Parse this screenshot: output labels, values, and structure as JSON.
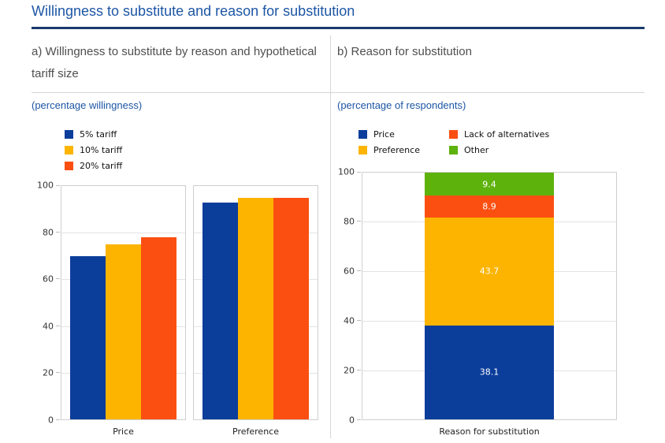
{
  "page": {
    "title": "Willingness to substitute and reason for substitution"
  },
  "panels": {
    "a": {
      "header": "a) Willingness to substitute by reason and hypothetical tariff size",
      "subtitle": "(percentage willingness)"
    },
    "b": {
      "header": "b) Reason for substitution",
      "subtitle": "(percentage of respondents)"
    }
  },
  "colors": {
    "title_blue": "#1d56a5",
    "rule_navy": "#193a6d",
    "header_gray": "#4f4f4f",
    "divider_gray": "#d6d6d6",
    "bar_blue": "#0b3d9b",
    "bar_yellow": "#fcb400",
    "bar_orange": "#fb4f12",
    "bar_green": "#5eb20c"
  },
  "chart_data": [
    {
      "id": "willingness-by-tariff",
      "type": "bar",
      "title": "a) Willingness to substitute by reason and hypothetical tariff size",
      "subtitle": "(percentage willingness)",
      "categories": [
        "Price",
        "Preference"
      ],
      "series": [
        {
          "name": "5% tariff",
          "color": "#0b3d9b",
          "values": [
            70,
            93
          ]
        },
        {
          "name": "10% tariff",
          "color": "#fcb400",
          "values": [
            75,
            95
          ]
        },
        {
          "name": "20% tariff",
          "color": "#fb4f12",
          "values": [
            78,
            95
          ]
        }
      ],
      "ylim": [
        0,
        100
      ],
      "yticks": [
        0,
        20,
        40,
        60,
        80,
        100
      ],
      "grid": true,
      "legend_position": "top-left",
      "legend_columns": 1,
      "data_labels": false
    },
    {
      "id": "reason-for-substitution",
      "type": "stacked-bar",
      "title": "b) Reason for substitution",
      "subtitle": "(percentage of respondents)",
      "categories": [
        "Reason for substitution"
      ],
      "series": [
        {
          "name": "Price",
          "color": "#0b3d9b",
          "values": [
            38.1
          ]
        },
        {
          "name": "Preference",
          "color": "#fcb400",
          "values": [
            43.7
          ]
        },
        {
          "name": "Lack of alternatives",
          "color": "#fb4f12",
          "values": [
            8.9
          ]
        },
        {
          "name": "Other",
          "color": "#5eb20c",
          "values": [
            9.4
          ]
        }
      ],
      "ylim": [
        0,
        100
      ],
      "yticks": [
        0,
        20,
        40,
        60,
        80,
        100
      ],
      "grid": true,
      "legend_position": "top-left",
      "legend_columns": 2,
      "data_labels": true
    }
  ]
}
